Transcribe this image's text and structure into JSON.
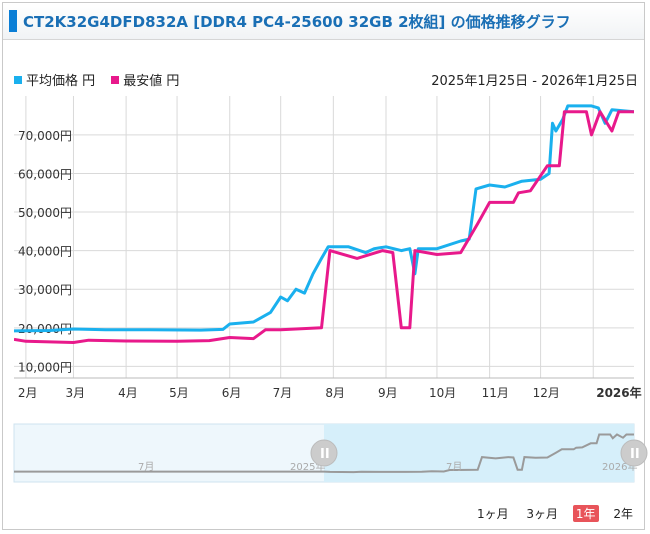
{
  "header": {
    "title": "CT2K32G4DFD832A [DDR4 PC4-25600 32GB 2枚組] の価格推移グラフ"
  },
  "legend": {
    "avg_label": "平均価格 円",
    "min_label": "最安値 円"
  },
  "date_range": "2025年1月25日 - 2026年1月25日",
  "range_buttons": [
    {
      "label": "1ヶ月",
      "active": false
    },
    {
      "label": "3ヶ月",
      "active": false
    },
    {
      "label": "1年",
      "active": true
    },
    {
      "label": "2年",
      "active": false
    }
  ],
  "navigator": {
    "labels": [
      "7月",
      "2025年",
      "7月",
      "2026年"
    ],
    "handle_glyph": "II"
  },
  "colors": {
    "avg": "#1ab0ee",
    "min": "#e8198b",
    "grid": "#d9d9d9",
    "navigator_bg": "#eef7fc",
    "navigator_sel": "#d6effa",
    "navigator_line": "#9a9a9a"
  },
  "chart_data": {
    "type": "line",
    "title": "CT2K32G4DFD832A [DDR4 PC4-25600 32GB 2枚組] の価格推移グラフ",
    "x_range": [
      "2025-01-25",
      "2026-01-25"
    ],
    "x_tick_labels": [
      "2月",
      "3月",
      "4月",
      "5月",
      "6月",
      "7月",
      "8月",
      "9月",
      "10月",
      "11月",
      "12月",
      "2026年"
    ],
    "x_tick_dates": [
      "2025-02-01",
      "2025-03-01",
      "2025-04-01",
      "2025-05-01",
      "2025-06-01",
      "2025-07-01",
      "2025-08-01",
      "2025-09-01",
      "2025-10-01",
      "2025-11-01",
      "2025-12-01",
      "2026-01-01"
    ],
    "y_tick_labels": [
      "10,000円",
      "20,000円",
      "30,000円",
      "40,000円",
      "50,000円",
      "60,000円",
      "70,000円"
    ],
    "y_ticks": [
      10000,
      20000,
      30000,
      40000,
      50000,
      60000,
      70000
    ],
    "ylim": [
      7000,
      78000
    ],
    "grid": true,
    "legend_position": "top-left",
    "series": [
      {
        "name": "平均価格 円",
        "points": [
          [
            "2025-01-25",
            19200
          ],
          [
            "2025-02-15",
            19300
          ],
          [
            "2025-03-01",
            19700
          ],
          [
            "2025-03-20",
            19500
          ],
          [
            "2025-04-15",
            19500
          ],
          [
            "2025-05-15",
            19400
          ],
          [
            "2025-05-28",
            19600
          ],
          [
            "2025-06-01",
            21000
          ],
          [
            "2025-06-15",
            21500
          ],
          [
            "2025-06-25",
            24000
          ],
          [
            "2025-07-01",
            28000
          ],
          [
            "2025-07-05",
            27000
          ],
          [
            "2025-07-10",
            30000
          ],
          [
            "2025-07-15",
            29000
          ],
          [
            "2025-07-20",
            34000
          ],
          [
            "2025-07-25",
            38000
          ],
          [
            "2025-07-29",
            41000
          ],
          [
            "2025-08-10",
            41000
          ],
          [
            "2025-08-20",
            39500
          ],
          [
            "2025-08-25",
            40500
          ],
          [
            "2025-09-01",
            41000
          ],
          [
            "2025-09-10",
            40000
          ],
          [
            "2025-09-15",
            40500
          ],
          [
            "2025-09-18",
            34000
          ],
          [
            "2025-09-20",
            40500
          ],
          [
            "2025-10-01",
            40500
          ],
          [
            "2025-10-15",
            42500
          ],
          [
            "2025-10-20",
            43000
          ],
          [
            "2025-10-24",
            56000
          ],
          [
            "2025-11-01",
            57000
          ],
          [
            "2025-11-10",
            56500
          ],
          [
            "2025-11-20",
            58000
          ],
          [
            "2025-12-01",
            58500
          ],
          [
            "2025-12-06",
            60000
          ],
          [
            "2025-12-08",
            73000
          ],
          [
            "2025-12-10",
            71000
          ],
          [
            "2025-12-14",
            74000
          ],
          [
            "2025-12-17",
            77500
          ],
          [
            "2025-12-31",
            77500
          ],
          [
            "2026-01-04",
            77000
          ],
          [
            "2026-01-08",
            73000
          ],
          [
            "2026-01-12",
            76500
          ],
          [
            "2026-01-25",
            76000
          ]
        ]
      },
      {
        "name": "最安値 円",
        "points": [
          [
            "2025-01-25",
            17000
          ],
          [
            "2025-02-01",
            16500
          ],
          [
            "2025-03-01",
            16200
          ],
          [
            "2025-03-10",
            16800
          ],
          [
            "2025-04-01",
            16600
          ],
          [
            "2025-05-01",
            16500
          ],
          [
            "2025-05-20",
            16700
          ],
          [
            "2025-06-01",
            17500
          ],
          [
            "2025-06-15",
            17200
          ],
          [
            "2025-06-22",
            19500
          ],
          [
            "2025-07-01",
            19500
          ],
          [
            "2025-07-25",
            20000
          ],
          [
            "2025-07-30",
            40000
          ],
          [
            "2025-08-15",
            38000
          ],
          [
            "2025-08-30",
            40000
          ],
          [
            "2025-09-05",
            39500
          ],
          [
            "2025-09-10",
            20000
          ],
          [
            "2025-09-15",
            20000
          ],
          [
            "2025-09-18",
            40000
          ],
          [
            "2025-10-01",
            39000
          ],
          [
            "2025-10-15",
            39500
          ],
          [
            "2025-10-25",
            47000
          ],
          [
            "2025-11-01",
            52500
          ],
          [
            "2025-11-15",
            52500
          ],
          [
            "2025-11-18",
            55000
          ],
          [
            "2025-11-25",
            55500
          ],
          [
            "2025-12-05",
            62000
          ],
          [
            "2025-12-12",
            62000
          ],
          [
            "2025-12-15",
            76000
          ],
          [
            "2025-12-28",
            76000
          ],
          [
            "2025-12-31",
            70000
          ],
          [
            "2026-01-05",
            76000
          ],
          [
            "2026-01-12",
            71000
          ],
          [
            "2026-01-16",
            76000
          ],
          [
            "2026-01-25",
            76000
          ]
        ]
      }
    ]
  }
}
